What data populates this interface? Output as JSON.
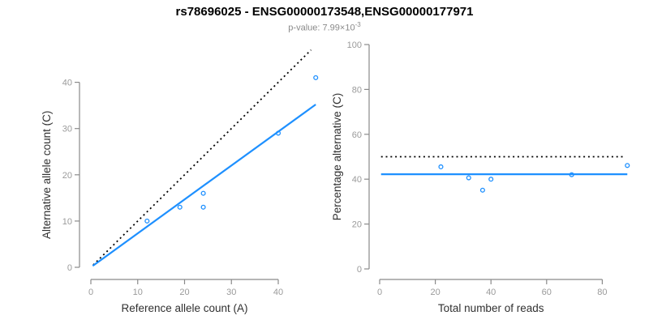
{
  "title": "rs78696025 - ENSG00000173548,ENSG00000177971",
  "subtitle": {
    "label": "p-value:",
    "prefix": "p-value: 7.99×10",
    "exponent": "-3",
    "p_value": "7.99e-3"
  },
  "colors": {
    "accent": "#1E90FF",
    "reference_line": "#000000",
    "axis": "#8a8a8a",
    "tick_label": "#9a9a9a",
    "axis_label": "#303030",
    "title": "#000000",
    "subtitle": "#8a8a8a",
    "background": "#ffffff"
  },
  "chart_data": [
    {
      "type": "scatter",
      "panel": "left",
      "xlabel": "Reference allele count (A)",
      "ylabel": "Alternative allele count (C)",
      "xlim": [
        0,
        48
      ],
      "ylim": [
        0,
        48
      ],
      "xticks": [
        0,
        10,
        20,
        30,
        40
      ],
      "yticks": [
        0,
        10,
        20,
        30,
        40
      ],
      "grid": false,
      "legend": null,
      "points": [
        [
          12,
          10
        ],
        [
          19,
          13
        ],
        [
          24,
          13
        ],
        [
          24,
          16
        ],
        [
          40,
          29
        ],
        [
          48,
          41
        ]
      ],
      "lines": [
        {
          "name": "identity-line",
          "style": "dotted",
          "color": "#000000",
          "x": [
            0.5,
            47.0
          ],
          "y": [
            0.5,
            47.0
          ]
        },
        {
          "name": "fit-line",
          "style": "solid",
          "color": "#1E90FF",
          "x": [
            0.4,
            48.0
          ],
          "y": [
            0.3,
            35.2
          ]
        }
      ]
    },
    {
      "type": "scatter",
      "panel": "right",
      "xlabel": "Total number of reads",
      "ylabel": "Percentage alternative (C)",
      "xlim": [
        0,
        90
      ],
      "ylim": [
        0,
        100
      ],
      "xticks": [
        0,
        20,
        40,
        60,
        80
      ],
      "yticks": [
        0,
        20,
        40,
        60,
        80,
        100
      ],
      "grid": false,
      "legend": null,
      "points": [
        [
          22,
          45.5
        ],
        [
          32,
          40.6
        ],
        [
          37,
          35.1
        ],
        [
          40,
          40.0
        ],
        [
          69,
          42.0
        ],
        [
          89,
          46.1
        ]
      ],
      "lines": [
        {
          "name": "expected-50pct-line",
          "style": "dotted",
          "color": "#000000",
          "x": [
            0.5,
            88.0
          ],
          "y": [
            50,
            50
          ]
        },
        {
          "name": "fit-line",
          "style": "solid",
          "color": "#1E90FF",
          "x": [
            0.5,
            89.0
          ],
          "y": [
            42.2,
            42.2
          ]
        }
      ]
    }
  ]
}
